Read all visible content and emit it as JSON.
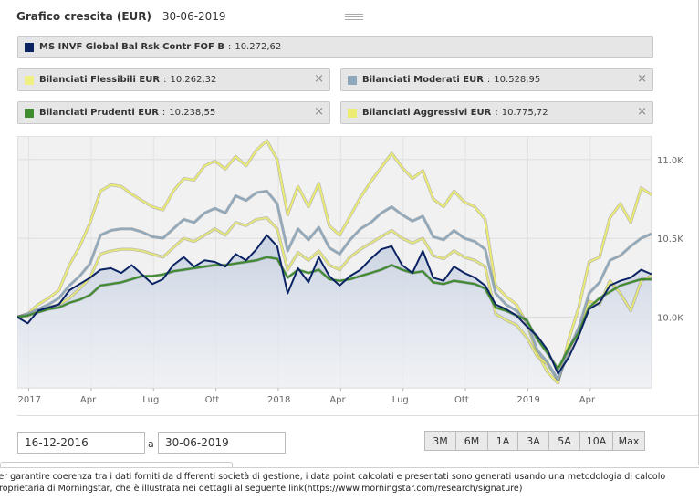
{
  "header": {
    "title": "Grafico crescita (EUR)",
    "date": "30-06-2019"
  },
  "legend": [
    {
      "name": "MS INVF Global Bal Rsk Contr FOF B",
      "value": "10.272,62",
      "color": "#0b2363",
      "closable": false
    },
    {
      "name": "Bilanciati Flessibili EUR",
      "value": "10.262,32",
      "color": "#eef07f",
      "closable": true
    },
    {
      "name": "Bilanciati Moderati EUR",
      "value": "10.528,95",
      "color": "#8ea9be",
      "closable": true
    },
    {
      "name": "Bilanciati Prudenti EUR",
      "value": "10.238,55",
      "color": "#3d8c2d",
      "closable": true
    },
    {
      "name": "Bilanciati Aggressivi EUR",
      "value": "10.775,72",
      "color": "#ecec73",
      "closable": true
    }
  ],
  "legend_separator": ":",
  "close_icon": "×",
  "chart_data": {
    "type": "line",
    "title": "Grafico crescita (EUR)",
    "x_unit": "month index from 2016-12-16",
    "xlim": [
      0,
      30.5
    ],
    "ylim": [
      9550,
      11150
    ],
    "y_ticks": [
      {
        "value": 10000,
        "label": "10.0K"
      },
      {
        "value": 10500,
        "label": "10.5K"
      },
      {
        "value": 11000,
        "label": "11.0K"
      }
    ],
    "x_ticks": [
      {
        "value": 0.55,
        "label": "2017"
      },
      {
        "value": 3.55,
        "label": "Apr"
      },
      {
        "value": 6.55,
        "label": "Lug"
      },
      {
        "value": 9.55,
        "label": "Ott"
      },
      {
        "value": 12.55,
        "label": "2018"
      },
      {
        "value": 15.55,
        "label": "Apr"
      },
      {
        "value": 18.55,
        "label": "Lug"
      },
      {
        "value": 21.55,
        "label": "Ott"
      },
      {
        "value": 24.55,
        "label": "2019"
      },
      {
        "value": 27.55,
        "label": "Apr"
      }
    ],
    "x": [
      0,
      0.5,
      1,
      1.5,
      2,
      2.5,
      3,
      3.5,
      4,
      4.5,
      5,
      5.5,
      6,
      6.5,
      7,
      7.5,
      8,
      8.5,
      9,
      9.5,
      10,
      10.5,
      11,
      11.5,
      12,
      12.5,
      13,
      13.5,
      14,
      14.5,
      15,
      15.5,
      16,
      16.5,
      17,
      17.5,
      18,
      18.5,
      19,
      19.5,
      20,
      20.5,
      21,
      21.5,
      22,
      22.5,
      23,
      23.5,
      24,
      24.5,
      25,
      25.5,
      26,
      26.5,
      27,
      27.5,
      28,
      28.5,
      29,
      29.5,
      30,
      30.5
    ],
    "series": [
      {
        "name": "MS INVF Global Bal Rsk Contr FOF B",
        "color": "#0b2363",
        "fill": true,
        "values": [
          10000,
          9960,
          10040,
          10060,
          10080,
          10170,
          10210,
          10250,
          10300,
          10310,
          10280,
          10330,
          10270,
          10210,
          10240,
          10330,
          10380,
          10320,
          10360,
          10350,
          10320,
          10400,
          10360,
          10430,
          10520,
          10450,
          10150,
          10310,
          10220,
          10380,
          10260,
          10200,
          10260,
          10300,
          10370,
          10430,
          10450,
          10330,
          10280,
          10420,
          10250,
          10230,
          10320,
          10280,
          10250,
          10200,
          10080,
          10050,
          10010,
          9940,
          9880,
          9790,
          9640,
          9740,
          9880,
          10050,
          10090,
          10200,
          10230,
          10250,
          10300,
          10272
        ]
      },
      {
        "name": "Bilanciati Prudenti EUR",
        "color": "#3d8c2d",
        "fill": false,
        "values": [
          10000,
          10010,
          10030,
          10050,
          10060,
          10090,
          10110,
          10140,
          10200,
          10210,
          10220,
          10240,
          10260,
          10260,
          10270,
          10290,
          10300,
          10310,
          10320,
          10330,
          10330,
          10340,
          10350,
          10360,
          10380,
          10370,
          10250,
          10300,
          10280,
          10300,
          10240,
          10230,
          10240,
          10260,
          10280,
          10300,
          10330,
          10300,
          10280,
          10290,
          10220,
          10210,
          10230,
          10220,
          10210,
          10180,
          10060,
          10040,
          10010,
          9980,
          9860,
          9770,
          9670,
          9800,
          9900,
          10060,
          10120,
          10160,
          10200,
          10220,
          10240,
          10239
        ]
      },
      {
        "name": "Bilanciati Moderati EUR",
        "color": "#8ea9be",
        "fill": false,
        "values": [
          10000,
          10020,
          10050,
          10080,
          10120,
          10200,
          10260,
          10340,
          10520,
          10550,
          10560,
          10560,
          10540,
          10510,
          10500,
          10560,
          10620,
          10600,
          10660,
          10690,
          10660,
          10770,
          10740,
          10790,
          10800,
          10720,
          10420,
          10560,
          10490,
          10570,
          10440,
          10400,
          10490,
          10560,
          10600,
          10660,
          10700,
          10650,
          10610,
          10640,
          10510,
          10490,
          10550,
          10500,
          10480,
          10430,
          10150,
          10080,
          10040,
          9970,
          9790,
          9710,
          9600,
          9790,
          9930,
          10150,
          10220,
          10360,
          10390,
          10450,
          10500,
          10529
        ]
      },
      {
        "name": "Bilanciati Flessibili EUR",
        "color": "#e6e77b",
        "fill": false,
        "values": [
          10000,
          10010,
          10040,
          10060,
          10080,
          10120,
          10180,
          10250,
          10400,
          10420,
          10430,
          10430,
          10420,
          10400,
          10380,
          10440,
          10500,
          10480,
          10520,
          10560,
          10520,
          10600,
          10580,
          10620,
          10630,
          10560,
          10300,
          10410,
          10360,
          10420,
          10330,
          10300,
          10380,
          10430,
          10470,
          10510,
          10550,
          10500,
          10470,
          10500,
          10390,
          10370,
          10420,
          10380,
          10360,
          10320,
          10020,
          9980,
          9950,
          9870,
          9750,
          9700,
          9600,
          9780,
          9930,
          10100,
          10080,
          10230,
          10150,
          10040,
          10230,
          10262
        ]
      },
      {
        "name": "Bilanciati Aggressivi EUR",
        "color": "#ecec73",
        "fill": false,
        "values": [
          10000,
          10020,
          10080,
          10120,
          10170,
          10330,
          10450,
          10600,
          10800,
          10840,
          10830,
          10780,
          10740,
          10700,
          10680,
          10800,
          10880,
          10870,
          10960,
          10990,
          10940,
          11020,
          10960,
          11060,
          11120,
          11000,
          10650,
          10830,
          10700,
          10850,
          10580,
          10520,
          10640,
          10760,
          10860,
          10950,
          11040,
          10950,
          10880,
          10930,
          10750,
          10700,
          10800,
          10730,
          10700,
          10620,
          10200,
          10130,
          10080,
          9960,
          9770,
          9650,
          9580,
          9850,
          10060,
          10350,
          10380,
          10630,
          10720,
          10600,
          10820,
          10776
        ]
      }
    ]
  },
  "date_range": {
    "from": "16-12-2016",
    "separator": "a",
    "to": "30-06-2019"
  },
  "range_buttons": [
    "3M",
    "6M",
    "1A",
    "3A",
    "5A",
    "10A",
    "Max"
  ],
  "disclaimer": {
    "line1": "Per garantire coerenza tra i dati forniti da differenti società di gestione, i data point calcolati e presentati sono generati usando una metodologia di calcolo",
    "line2": "proprietaria di Morningstar, che è illustrata nei dettagli al seguente link(https://www.morningstar.com/research/signature)"
  }
}
